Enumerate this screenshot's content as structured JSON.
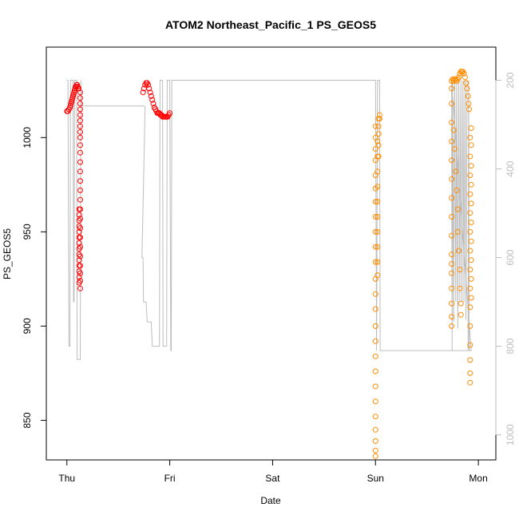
{
  "chart_data": {
    "type": "scatter",
    "title": "ATOM2 Northeast_Pacific_1 PS_GEOS5",
    "xlabel": "Date",
    "ylabel": "PS_GEOS5",
    "x_unit": "days from Thu 00:00",
    "xlim": [
      -0.2,
      4.17
    ],
    "ylim": [
      829,
      1048
    ],
    "x_ticks": [
      {
        "value": 0,
        "label": "Thu"
      },
      {
        "value": 1,
        "label": "Fri"
      },
      {
        "value": 2,
        "label": "Sat"
      },
      {
        "value": 3,
        "label": "Sun"
      },
      {
        "value": 4,
        "label": "Mon"
      }
    ],
    "y_ticks": [
      850,
      900,
      950,
      1000
    ],
    "y2_ticks": [
      200,
      400,
      600,
      800,
      1000
    ],
    "y2_map": {
      "at_200": 1030.4,
      "at_1000": 842.3
    },
    "grid": false,
    "legend": "none",
    "colors": {
      "series1": "#ff0000",
      "series2": "#ff8c00",
      "altitude": "#bdbdbd"
    },
    "series": [
      {
        "color": "#ff0000",
        "points": [
          [
            0.0,
            1014
          ],
          [
            0.01,
            1014
          ],
          [
            0.02,
            1015
          ],
          [
            0.03,
            1016
          ],
          [
            0.035,
            1017
          ],
          [
            0.04,
            1018
          ],
          [
            0.045,
            1019
          ],
          [
            0.05,
            1020
          ],
          [
            0.055,
            1021
          ],
          [
            0.06,
            1022
          ],
          [
            0.065,
            1023
          ],
          [
            0.07,
            1024
          ],
          [
            0.075,
            1025
          ],
          [
            0.08,
            1026
          ],
          [
            0.085,
            1027
          ],
          [
            0.09,
            1027
          ],
          [
            0.095,
            1028
          ],
          [
            0.1,
            1028
          ],
          [
            0.105,
            1027
          ],
          [
            0.11,
            1026
          ],
          [
            0.115,
            1026
          ],
          [
            0.13,
            1024
          ],
          [
            0.13,
            1021
          ],
          [
            0.13,
            1018
          ],
          [
            0.13,
            1015
          ],
          [
            0.13,
            1012
          ],
          [
            0.13,
            1009
          ],
          [
            0.13,
            1006
          ],
          [
            0.13,
            1003
          ],
          [
            0.13,
            1000
          ],
          [
            0.13,
            996
          ],
          [
            0.13,
            992
          ],
          [
            0.13,
            987
          ],
          [
            0.13,
            982
          ],
          [
            0.13,
            977
          ],
          [
            0.13,
            972
          ],
          [
            0.13,
            967
          ],
          [
            0.13,
            962
          ],
          [
            0.13,
            957
          ],
          [
            0.13,
            952
          ],
          [
            0.13,
            947
          ],
          [
            0.13,
            942
          ],
          [
            0.13,
            937
          ],
          [
            0.13,
            932
          ],
          [
            0.13,
            928
          ],
          [
            0.13,
            924
          ],
          [
            0.13,
            920
          ],
          [
            0.12,
            962
          ],
          [
            0.12,
            959
          ],
          [
            0.12,
            956
          ],
          [
            0.12,
            953
          ],
          [
            0.12,
            950
          ],
          [
            0.12,
            947
          ],
          [
            0.12,
            944
          ],
          [
            0.12,
            941
          ],
          [
            0.12,
            938
          ],
          [
            0.12,
            935
          ],
          [
            0.12,
            932
          ],
          [
            0.12,
            929
          ],
          [
            0.12,
            926
          ],
          [
            0.12,
            923
          ],
          [
            0.74,
            1024
          ],
          [
            0.75,
            1026
          ],
          [
            0.76,
            1028
          ],
          [
            0.77,
            1029
          ],
          [
            0.78,
            1029
          ],
          [
            0.79,
            1028
          ],
          [
            0.8,
            1026
          ],
          [
            0.81,
            1024
          ],
          [
            0.82,
            1022
          ],
          [
            0.83,
            1020
          ],
          [
            0.84,
            1018
          ],
          [
            0.85,
            1016
          ],
          [
            0.86,
            1015
          ],
          [
            0.87,
            1014
          ],
          [
            0.88,
            1013
          ],
          [
            0.89,
            1013
          ],
          [
            0.9,
            1013
          ],
          [
            0.91,
            1012
          ],
          [
            0.92,
            1012
          ],
          [
            0.93,
            1011
          ],
          [
            0.94,
            1011
          ],
          [
            0.95,
            1011
          ],
          [
            0.96,
            1011
          ],
          [
            0.97,
            1011
          ],
          [
            0.98,
            1011
          ],
          [
            0.99,
            1012
          ],
          [
            1.0,
            1013
          ]
        ]
      },
      {
        "color": "#ff8c00",
        "points": [
          [
            3.0,
            1006
          ],
          [
            3.0,
            1000
          ],
          [
            3.0,
            994
          ],
          [
            3.0,
            988
          ],
          [
            3.0,
            980
          ],
          [
            3.0,
            973
          ],
          [
            3.0,
            966
          ],
          [
            3.0,
            958
          ],
          [
            3.0,
            950
          ],
          [
            3.0,
            942
          ],
          [
            3.0,
            934
          ],
          [
            3.0,
            925
          ],
          [
            3.0,
            917
          ],
          [
            3.0,
            909
          ],
          [
            3.0,
            900
          ],
          [
            3.0,
            892
          ],
          [
            3.0,
            884
          ],
          [
            3.0,
            876
          ],
          [
            3.0,
            868
          ],
          [
            3.0,
            860
          ],
          [
            3.0,
            852
          ],
          [
            3.0,
            845
          ],
          [
            3.0,
            839
          ],
          [
            3.0,
            834
          ],
          [
            3.0,
            831
          ],
          [
            3.02,
            998
          ],
          [
            3.02,
            990
          ],
          [
            3.02,
            982
          ],
          [
            3.02,
            974
          ],
          [
            3.02,
            966
          ],
          [
            3.02,
            958
          ],
          [
            3.02,
            950
          ],
          [
            3.02,
            942
          ],
          [
            3.02,
            934
          ],
          [
            3.02,
            927
          ],
          [
            3.03,
            1010
          ],
          [
            3.03,
            1006
          ],
          [
            3.03,
            1002
          ],
          [
            3.03,
            996
          ],
          [
            3.03,
            990
          ],
          [
            3.04,
            1012
          ],
          [
            3.04,
            1010
          ],
          [
            3.74,
            1030
          ],
          [
            3.74,
            1026
          ],
          [
            3.74,
            1018
          ],
          [
            3.74,
            1008
          ],
          [
            3.74,
            998
          ],
          [
            3.74,
            988
          ],
          [
            3.74,
            978
          ],
          [
            3.74,
            968
          ],
          [
            3.74,
            958
          ],
          [
            3.74,
            948
          ],
          [
            3.74,
            938
          ],
          [
            3.74,
            933
          ],
          [
            3.74,
            928
          ],
          [
            3.74,
            920
          ],
          [
            3.74,
            912
          ],
          [
            3.74,
            905
          ],
          [
            3.74,
            900
          ],
          [
            3.75,
            1031
          ],
          [
            3.76,
            1030
          ],
          [
            3.77,
            1031
          ],
          [
            3.78,
            1031
          ],
          [
            3.79,
            1030
          ],
          [
            3.8,
            1031
          ],
          [
            3.81,
            1032
          ],
          [
            3.82,
            1034
          ],
          [
            3.83,
            1035
          ],
          [
            3.84,
            1035
          ],
          [
            3.85,
            1035
          ],
          [
            3.86,
            1034
          ],
          [
            3.87,
            1032
          ],
          [
            3.88,
            1029
          ],
          [
            3.89,
            1026
          ],
          [
            3.9,
            1022
          ],
          [
            3.905,
            1018
          ],
          [
            3.91,
            1015
          ],
          [
            3.76,
            1004
          ],
          [
            3.77,
            994
          ],
          [
            3.78,
            982
          ],
          [
            3.79,
            972
          ],
          [
            3.8,
            962
          ],
          [
            3.8,
            950
          ],
          [
            3.81,
            940
          ],
          [
            3.82,
            930
          ],
          [
            3.82,
            920
          ],
          [
            3.83,
            912
          ],
          [
            3.83,
            906
          ],
          [
            3.92,
            1000
          ],
          [
            3.92,
            990
          ],
          [
            3.92,
            980
          ],
          [
            3.92,
            970
          ],
          [
            3.92,
            960
          ],
          [
            3.92,
            950
          ],
          [
            3.92,
            940
          ],
          [
            3.92,
            930
          ],
          [
            3.92,
            920
          ],
          [
            3.92,
            910
          ],
          [
            3.92,
            900
          ],
          [
            3.92,
            890
          ],
          [
            3.92,
            882
          ],
          [
            3.92,
            875
          ],
          [
            3.92,
            870
          ],
          [
            3.93,
            1005
          ],
          [
            3.93,
            996
          ],
          [
            3.93,
            985
          ],
          [
            3.93,
            975
          ],
          [
            3.93,
            965
          ],
          [
            3.93,
            955
          ],
          [
            3.93,
            945
          ],
          [
            3.93,
            935
          ],
          [
            3.93,
            925
          ],
          [
            3.93,
            915
          ]
        ]
      }
    ],
    "altitude_series": [
      [
        0.0,
        200
      ],
      [
        0.01,
        200
      ],
      [
        0.02,
        800
      ],
      [
        0.03,
        800
      ],
      [
        0.035,
        200
      ],
      [
        0.06,
        200
      ],
      [
        0.065,
        700
      ],
      [
        0.07,
        700
      ],
      [
        0.075,
        200
      ],
      [
        0.095,
        200
      ],
      [
        0.1,
        830
      ],
      [
        0.13,
        830
      ],
      [
        0.135,
        200
      ],
      [
        0.14,
        258
      ],
      [
        0.75,
        258
      ],
      [
        0.76,
        260
      ],
      [
        0.73,
        600
      ],
      [
        0.74,
        600
      ],
      [
        0.745,
        700
      ],
      [
        0.77,
        700
      ],
      [
        0.78,
        745
      ],
      [
        0.82,
        745
      ],
      [
        0.83,
        800
      ],
      [
        0.9,
        800
      ],
      [
        0.905,
        200
      ],
      [
        0.93,
        200
      ],
      [
        0.935,
        800
      ],
      [
        0.97,
        800
      ],
      [
        0.975,
        200
      ],
      [
        1.0,
        200
      ],
      [
        1.01,
        810
      ],
      [
        1.015,
        810
      ],
      [
        1.02,
        200
      ],
      [
        3.0,
        200
      ],
      [
        3.01,
        810
      ],
      [
        3.02,
        200
      ],
      [
        3.04,
        200
      ],
      [
        3.045,
        810
      ],
      [
        3.07,
        810
      ],
      [
        3.9,
        810
      ],
      [
        3.905,
        200
      ],
      [
        3.91,
        810
      ],
      [
        3.93,
        810
      ],
      [
        3.74,
        200
      ],
      [
        3.745,
        810
      ],
      [
        3.75,
        200
      ],
      [
        3.76,
        745
      ],
      [
        3.77,
        200
      ],
      [
        3.78,
        700
      ],
      [
        3.79,
        200
      ],
      [
        3.8,
        760
      ],
      [
        3.81,
        200
      ],
      [
        3.82,
        700
      ],
      [
        3.83,
        200
      ],
      [
        3.84,
        700
      ],
      [
        3.85,
        200
      ],
      [
        3.86,
        700
      ],
      [
        3.87,
        200
      ],
      [
        3.88,
        740
      ],
      [
        3.89,
        200
      ]
    ]
  }
}
